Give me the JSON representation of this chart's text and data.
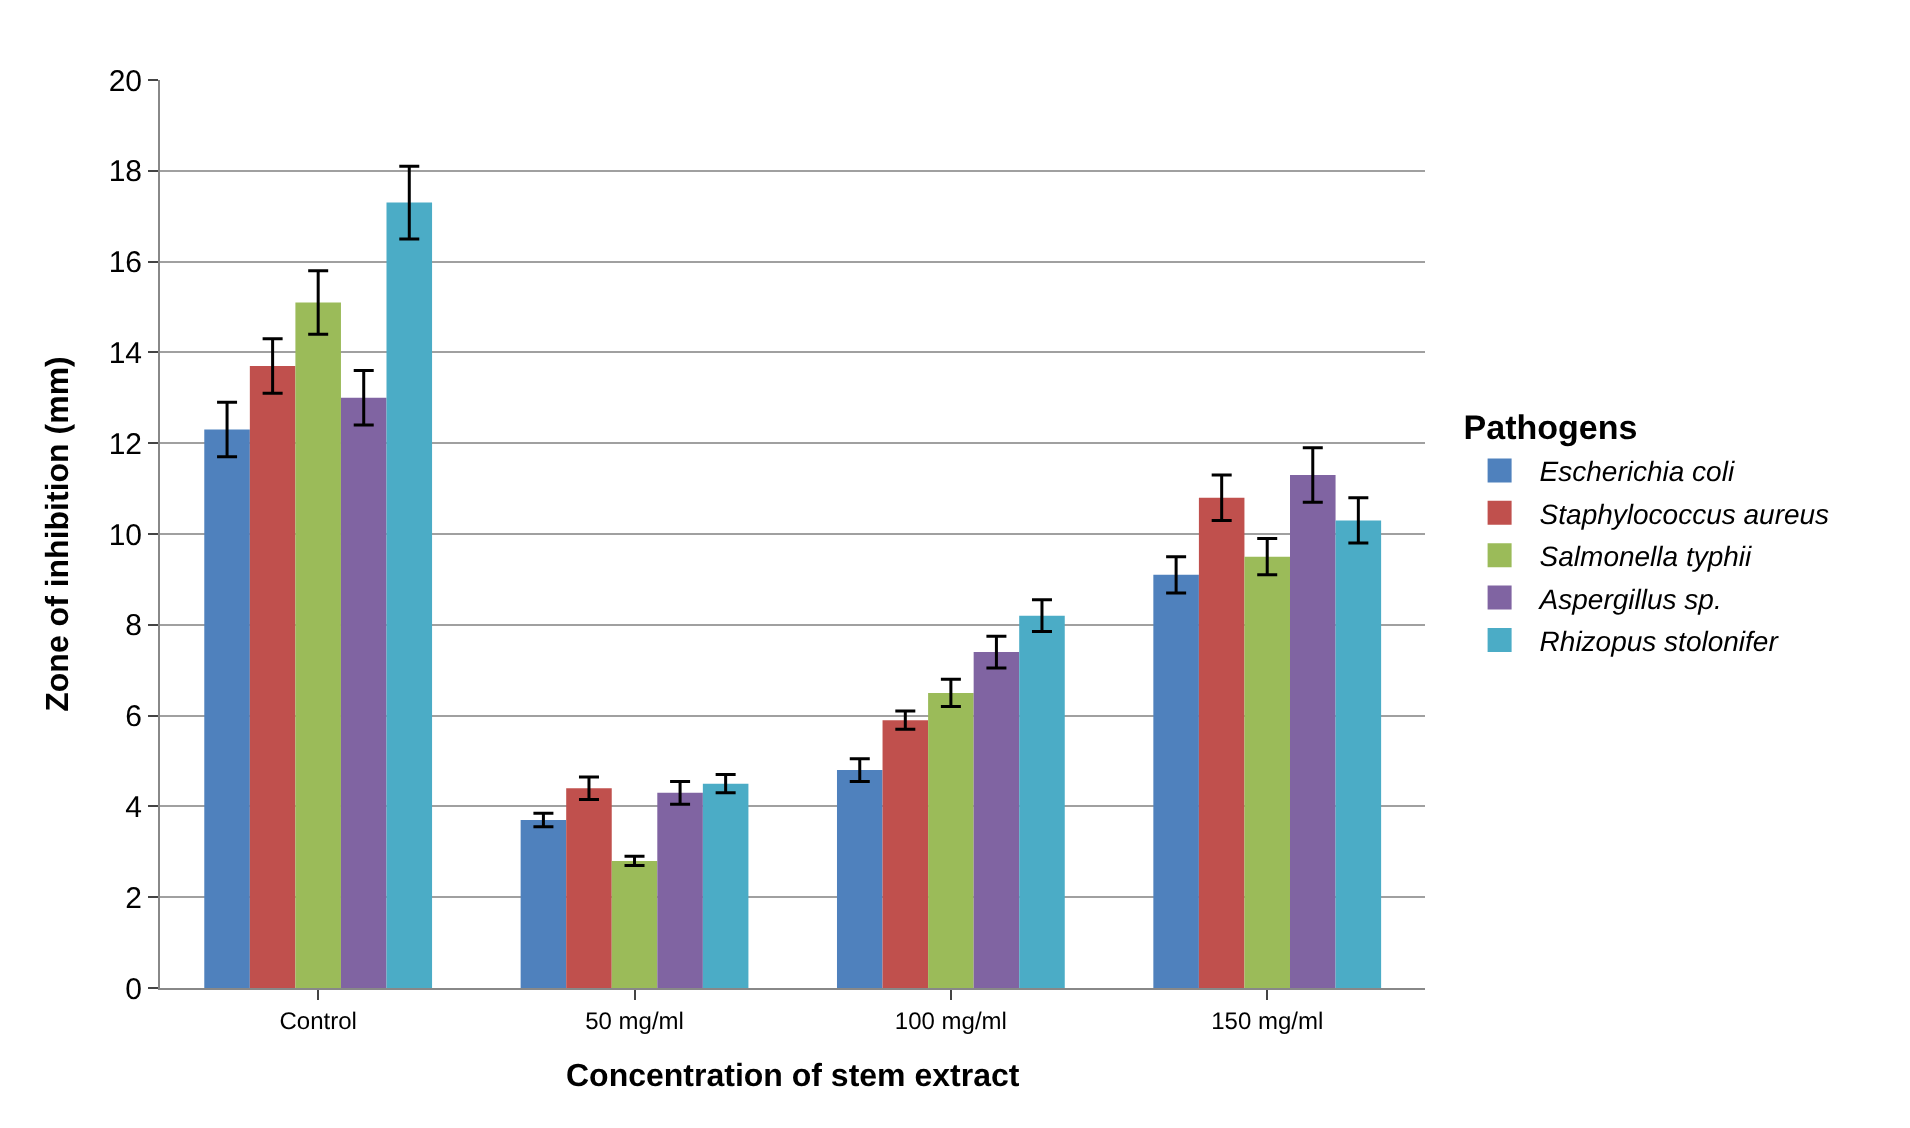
{
  "chart_data": {
    "type": "bar",
    "xlabel": "Concentration of stem extract",
    "ylabel": "Zone of inhibition (mm)",
    "legend_title": "Pathogens",
    "categories": [
      "Control",
      "50 mg/ml",
      "100 mg/ml",
      "150 mg/ml"
    ],
    "series": [
      {
        "name": "Escherichia coli",
        "color": "#4f81bd",
        "values": [
          12.3,
          3.7,
          4.8,
          9.1
        ],
        "errors": [
          0.6,
          0.15,
          0.25,
          0.4
        ]
      },
      {
        "name": "Staphylococcus aureus",
        "color": "#c0504d",
        "values": [
          13.7,
          4.4,
          5.9,
          10.8
        ],
        "errors": [
          0.6,
          0.25,
          0.2,
          0.5
        ]
      },
      {
        "name": "Salmonella typhii",
        "color": "#9bbb59",
        "values": [
          15.1,
          2.8,
          6.5,
          9.5
        ],
        "errors": [
          0.7,
          0.1,
          0.3,
          0.4
        ]
      },
      {
        "name": "Aspergillus sp.",
        "color": "#8064a2",
        "values": [
          13.0,
          4.3,
          7.4,
          11.3
        ],
        "errors": [
          0.6,
          0.25,
          0.35,
          0.6
        ]
      },
      {
        "name": "Rhizopus stolonifer",
        "color": "#4bacc6",
        "values": [
          17.3,
          4.5,
          8.2,
          10.3
        ],
        "errors": [
          0.8,
          0.2,
          0.35,
          0.5
        ]
      }
    ],
    "ylim": [
      0,
      20
    ],
    "yticks": [
      0,
      2,
      4,
      6,
      8,
      10,
      12,
      14,
      16,
      18,
      20
    ],
    "grid": "y",
    "legend": "right"
  }
}
